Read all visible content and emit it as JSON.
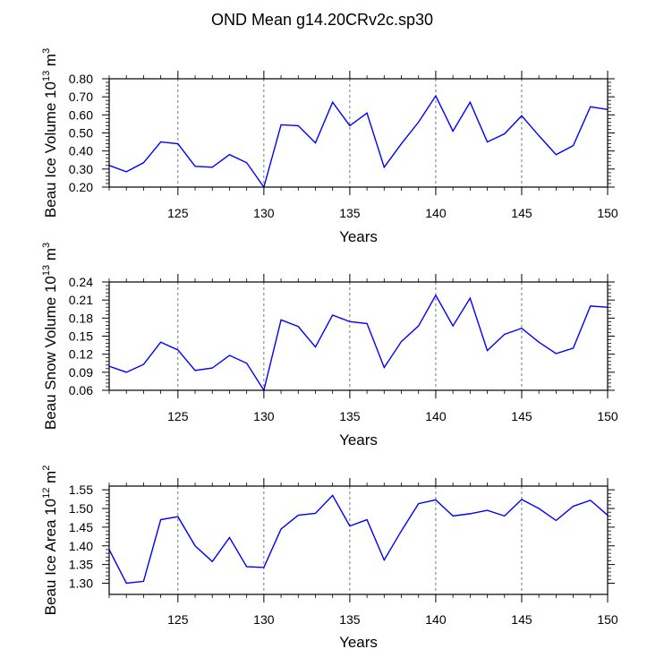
{
  "title": "OND Mean g14.20CRv2c.sp30",
  "line_color": "#0000ff",
  "chart_data": [
    {
      "type": "line",
      "ylabel": "Beau Ice Volume 10",
      "ylabel_exp": "13",
      "ylabel_unit": " m",
      "ylabel_unit_exp": "3",
      "xlabel": "Years",
      "xlim": [
        121,
        150
      ],
      "ylim": [
        0.2,
        0.8
      ],
      "yticks": [
        0.2,
        0.3,
        0.4,
        0.5,
        0.6,
        0.7,
        0.8
      ],
      "ytick_labels": [
        "0.20",
        "0.30",
        "0.40",
        "0.50",
        "0.60",
        "0.70",
        "0.80"
      ],
      "xticks": [
        125,
        130,
        135,
        140,
        145,
        150
      ],
      "xtick_labels": [
        "125",
        "130",
        "135",
        "140",
        "145",
        "150"
      ],
      "grid": "vertical dashed at x ticks",
      "x": [
        121,
        122,
        123,
        124,
        125,
        126,
        127,
        128,
        129,
        130,
        131,
        132,
        133,
        134,
        135,
        136,
        137,
        138,
        139,
        140,
        141,
        142,
        143,
        144,
        145,
        146,
        147,
        148,
        149,
        150
      ],
      "y": [
        0.32,
        0.285,
        0.335,
        0.45,
        0.44,
        0.315,
        0.31,
        0.38,
        0.335,
        0.2,
        0.545,
        0.54,
        0.445,
        0.67,
        0.54,
        0.61,
        0.31,
        0.44,
        0.56,
        0.705,
        0.51,
        0.67,
        0.45,
        0.495,
        0.595,
        0.485,
        0.38,
        0.43,
        0.645,
        0.63
      ]
    },
    {
      "type": "line",
      "ylabel": "Beau Snow Volume 10",
      "ylabel_exp": "13",
      "ylabel_unit": " m",
      "ylabel_unit_exp": "3",
      "xlabel": "Years",
      "xlim": [
        121,
        150
      ],
      "ylim": [
        0.06,
        0.24
      ],
      "yticks": [
        0.06,
        0.09,
        0.12,
        0.15,
        0.18,
        0.21,
        0.24
      ],
      "ytick_labels": [
        "0.06",
        "0.09",
        "0.12",
        "0.15",
        "0.18",
        "0.21",
        "0.24"
      ],
      "xticks": [
        125,
        130,
        135,
        140,
        145,
        150
      ],
      "xtick_labels": [
        "125",
        "130",
        "135",
        "140",
        "145",
        "150"
      ],
      "grid": "vertical dashed at x ticks",
      "x": [
        121,
        122,
        123,
        124,
        125,
        126,
        127,
        128,
        129,
        130,
        131,
        132,
        133,
        134,
        135,
        136,
        137,
        138,
        139,
        140,
        141,
        142,
        143,
        144,
        145,
        146,
        147,
        148,
        149,
        150
      ],
      "y": [
        0.1,
        0.09,
        0.103,
        0.14,
        0.127,
        0.093,
        0.097,
        0.118,
        0.105,
        0.06,
        0.177,
        0.166,
        0.132,
        0.185,
        0.174,
        0.171,
        0.098,
        0.141,
        0.167,
        0.218,
        0.167,
        0.213,
        0.126,
        0.153,
        0.163,
        0.14,
        0.121,
        0.13,
        0.2,
        0.198
      ]
    },
    {
      "type": "line",
      "ylabel": "Beau Ice Area 10",
      "ylabel_exp": "12",
      "ylabel_unit": " m",
      "ylabel_unit_exp": "2",
      "xlabel": "Years",
      "xlim": [
        121,
        150
      ],
      "ylim": [
        1.27,
        1.56
      ],
      "yticks": [
        1.3,
        1.35,
        1.4,
        1.45,
        1.5,
        1.55
      ],
      "ytick_labels": [
        "1.30",
        "1.35",
        "1.40",
        "1.45",
        "1.50",
        "1.55"
      ],
      "xticks": [
        125,
        130,
        135,
        140,
        145,
        150
      ],
      "xtick_labels": [
        "125",
        "130",
        "135",
        "140",
        "145",
        "150"
      ],
      "grid": "vertical dashed at x ticks",
      "x": [
        121,
        122,
        123,
        124,
        125,
        126,
        127,
        128,
        129,
        130,
        131,
        132,
        133,
        134,
        135,
        136,
        137,
        138,
        139,
        140,
        141,
        142,
        143,
        144,
        145,
        146,
        147,
        148,
        149,
        150
      ],
      "y": [
        1.39,
        1.3,
        1.305,
        1.47,
        1.478,
        1.4,
        1.358,
        1.422,
        1.344,
        1.342,
        1.445,
        1.482,
        1.487,
        1.535,
        1.453,
        1.47,
        1.362,
        1.44,
        1.513,
        1.523,
        1.48,
        1.486,
        1.495,
        1.48,
        1.524,
        1.5,
        1.468,
        1.506,
        1.522,
        1.482
      ]
    }
  ]
}
